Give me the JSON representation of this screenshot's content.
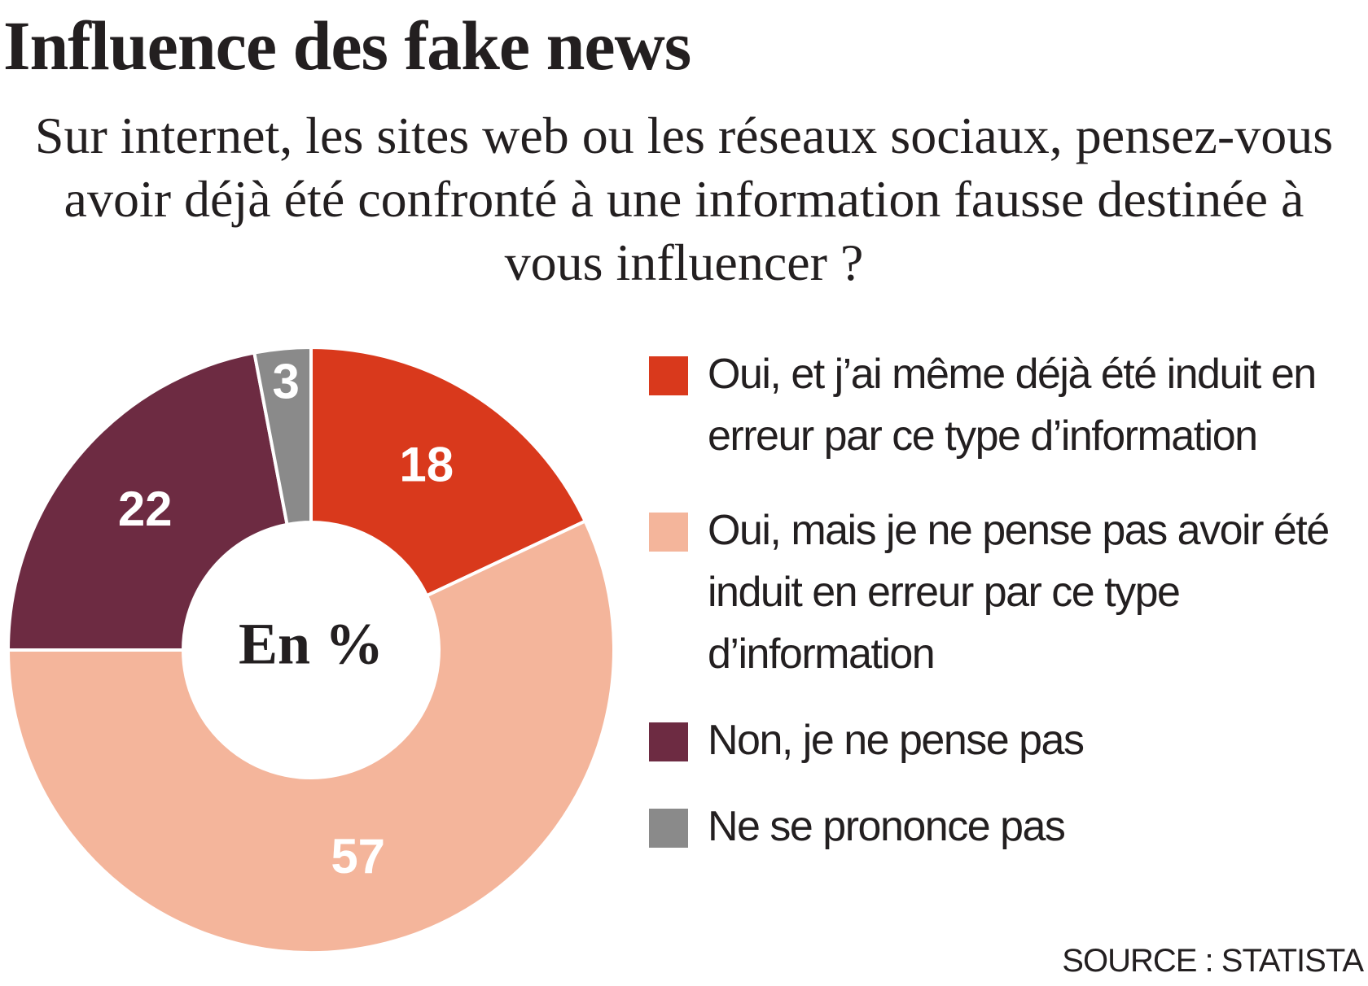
{
  "chart_data": {
    "type": "pie",
    "title": "Influence des fake news",
    "subtitle": "Sur internet, les sites web ou les réseaux sociaux, pensez-vous avoir déjà été confronté à une information fausse destinée à vous influencer ?",
    "center_label": "En %",
    "categories": [
      "Oui, et j’ai même déjà été induit en erreur par ce type d’information",
      "Oui, mais je ne pense pas avoir été induit en erreur par ce type d’information",
      "Non, je ne pense pas",
      "Ne se prononce pas"
    ],
    "values": [
      18,
      57,
      22,
      3
    ],
    "colors": [
      "#d9391c",
      "#f4b59b",
      "#6d2b42",
      "#8a8a8a"
    ],
    "source": "SOURCE : STATISTA"
  }
}
